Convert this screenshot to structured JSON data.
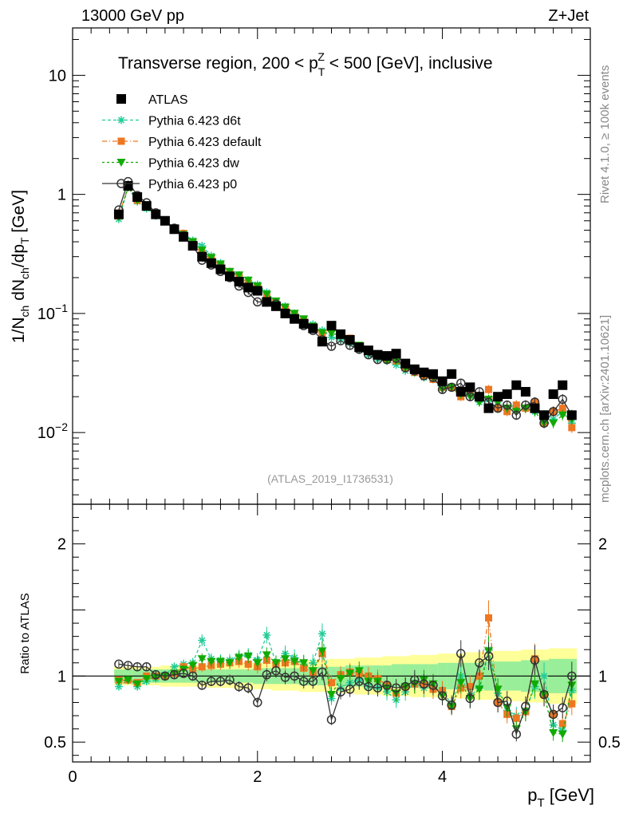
{
  "header": {
    "energy": "13000 GeV pp",
    "process": "Z+Jet"
  },
  "side_labels": {
    "rivet": "Rivet 4.1.0, ≥ 100k events",
    "mcplots": "mcplots.cern.ch [arXiv:2401.10621]"
  },
  "analysis_id": "(ATLAS_2019_I1736531)",
  "chart_data": [
    {
      "type": "scatter",
      "title_parts": [
        "Transverse region, 200 < p",
        "T",
        "Z",
        " < 500 [GeV], inclusive"
      ],
      "ylabel": "1/N_ch dN_ch/dp_T [GeV]",
      "xlabel": "p_T [GeV]",
      "xlim": [
        0,
        5.6
      ],
      "ylim": [
        0.0025,
        25
      ],
      "yscale": "log",
      "xticks": [
        0,
        2,
        4
      ],
      "yticks": [
        {
          "v": 10,
          "t": "10"
        },
        {
          "v": 1,
          "t": "1"
        },
        {
          "v": 0.1,
          "t": "10",
          "e": "−1"
        },
        {
          "v": 0.01,
          "t": "10",
          "e": "−2"
        }
      ],
      "x": [
        0.5,
        0.6,
        0.7,
        0.8,
        0.9,
        1.0,
        1.1,
        1.2,
        1.3,
        1.4,
        1.5,
        1.6,
        1.7,
        1.8,
        1.9,
        2.0,
        2.1,
        2.2,
        2.3,
        2.4,
        2.5,
        2.6,
        2.7,
        2.8,
        2.9,
        3.0,
        3.1,
        3.2,
        3.3,
        3.4,
        3.5,
        3.6,
        3.7,
        3.8,
        3.9,
        4.0,
        4.1,
        4.2,
        4.3,
        4.4,
        4.5,
        4.6,
        4.7,
        4.8,
        4.9,
        5.0,
        5.1,
        5.2,
        5.3,
        5.4
      ],
      "series": [
        {
          "name": "ATLAS",
          "color": "#000000",
          "marker": "square",
          "line": "none",
          "values": [
            0.68,
            1.18,
            0.95,
            0.8,
            0.68,
            0.6,
            0.51,
            0.44,
            0.37,
            0.3,
            0.265,
            0.235,
            0.205,
            0.185,
            0.165,
            0.155,
            0.125,
            0.115,
            0.1,
            0.09,
            0.082,
            0.075,
            0.058,
            0.079,
            0.067,
            0.06,
            0.052,
            0.049,
            0.045,
            0.044,
            0.046,
            0.038,
            0.034,
            0.032,
            0.031,
            0.027,
            0.031,
            0.022,
            0.024,
            0.02,
            0.016,
            0.02,
            0.021,
            0.025,
            0.022,
            0.016,
            0.014,
            0.021,
            0.025,
            0.014
          ]
        },
        {
          "name": "Pythia 6.423 d6t",
          "color": "#22cc99",
          "marker": "asterisk",
          "line": "4,3",
          "values": [
            0.62,
            1.14,
            0.87,
            0.76,
            0.66,
            0.6,
            0.52,
            0.47,
            0.41,
            0.37,
            0.305,
            0.265,
            0.225,
            0.21,
            0.19,
            0.175,
            0.15,
            0.125,
            0.115,
            0.1,
            0.088,
            0.081,
            0.072,
            0.063,
            0.06,
            0.056,
            0.05,
            0.045,
            0.041,
            0.04,
            0.037,
            0.033,
            0.032,
            0.029,
            0.028,
            0.025,
            0.024,
            0.022,
            0.021,
            0.018,
            0.019,
            0.017,
            0.016,
            0.017,
            0.016,
            0.015,
            0.014,
            0.013,
            0.015,
            0.012
          ]
        },
        {
          "name": "Pythia 6.423 default",
          "color": "#ee7722",
          "marker": "square-small",
          "line": "6,3,1,3",
          "values": [
            0.66,
            1.15,
            0.89,
            0.8,
            0.68,
            0.6,
            0.52,
            0.47,
            0.39,
            0.32,
            0.285,
            0.255,
            0.225,
            0.205,
            0.18,
            0.165,
            0.14,
            0.125,
            0.11,
            0.1,
            0.087,
            0.077,
            0.068,
            0.075,
            0.068,
            0.062,
            0.053,
            0.049,
            0.044,
            0.041,
            0.04,
            0.035,
            0.032,
            0.03,
            0.028,
            0.024,
            0.024,
            0.02,
            0.022,
            0.02,
            0.023,
            0.016,
            0.015,
            0.017,
            0.016,
            0.018,
            0.012,
            0.015,
            0.016,
            0.011
          ]
        },
        {
          "name": "Pythia 6.423 dw",
          "color": "#11aa00",
          "marker": "triangle-down",
          "line": "3,3",
          "values": [
            0.65,
            1.15,
            0.89,
            0.78,
            0.67,
            0.6,
            0.52,
            0.46,
            0.4,
            0.34,
            0.295,
            0.26,
            0.225,
            0.21,
            0.19,
            0.17,
            0.145,
            0.127,
            0.113,
            0.1,
            0.09,
            0.078,
            0.069,
            0.068,
            0.066,
            0.061,
            0.054,
            0.047,
            0.043,
            0.04,
            0.04,
            0.035,
            0.032,
            0.031,
            0.029,
            0.023,
            0.024,
            0.021,
            0.02,
            0.018,
            0.019,
            0.018,
            0.016,
            0.015,
            0.016,
            0.015,
            0.012,
            0.012,
            0.014,
            0.013
          ]
        },
        {
          "name": "Pythia 6.423 p0",
          "color": "#333333",
          "marker": "circle-open",
          "line": "solid",
          "values": [
            0.74,
            1.28,
            0.98,
            0.85,
            0.7,
            0.6,
            0.52,
            0.45,
            0.37,
            0.28,
            0.255,
            0.225,
            0.2,
            0.17,
            0.15,
            0.125,
            0.125,
            0.12,
            0.1,
            0.09,
            0.079,
            0.072,
            0.06,
            0.053,
            0.059,
            0.054,
            0.05,
            0.045,
            0.041,
            0.041,
            0.042,
            0.035,
            0.033,
            0.03,
            0.029,
            0.023,
            0.024,
            0.026,
            0.02,
            0.022,
            0.018,
            0.016,
            0.017,
            0.014,
            0.017,
            0.018,
            0.012,
            0.015,
            0.019,
            0.014
          ]
        }
      ]
    },
    {
      "type": "scatter",
      "ylabel": "Ratio to ATLAS",
      "xlabel": "p_T [GeV]",
      "xlim": [
        0,
        5.6
      ],
      "ylim": [
        0.35,
        2.3
      ],
      "yticks": [
        {
          "v": 0.5,
          "t": "0.5"
        },
        {
          "v": 1,
          "t": "1"
        },
        {
          "v": 2,
          "t": "2"
        }
      ],
      "xticks": [
        0,
        2,
        4
      ],
      "reference_line": 1,
      "band_inner_halfwidth": [
        0.05,
        0.05,
        0.05,
        0.05,
        0.05,
        0.05,
        0.05,
        0.05,
        0.05,
        0.05,
        0.05,
        0.05,
        0.05,
        0.05,
        0.05,
        0.06,
        0.06,
        0.06,
        0.06,
        0.06,
        0.07,
        0.07,
        0.07,
        0.07,
        0.07,
        0.08,
        0.08,
        0.08,
        0.08,
        0.08,
        0.09,
        0.09,
        0.09,
        0.09,
        0.09,
        0.1,
        0.1,
        0.1,
        0.1,
        0.1,
        0.11,
        0.11,
        0.11,
        0.11,
        0.12,
        0.12,
        0.12,
        0.13,
        0.13,
        0.13
      ],
      "band_outer_halfwidth": [
        0.07,
        0.07,
        0.07,
        0.07,
        0.07,
        0.08,
        0.08,
        0.08,
        0.08,
        0.08,
        0.09,
        0.09,
        0.09,
        0.1,
        0.1,
        0.1,
        0.1,
        0.11,
        0.11,
        0.11,
        0.12,
        0.12,
        0.12,
        0.13,
        0.13,
        0.13,
        0.14,
        0.14,
        0.14,
        0.15,
        0.15,
        0.15,
        0.16,
        0.16,
        0.16,
        0.17,
        0.17,
        0.17,
        0.18,
        0.18,
        0.18,
        0.19,
        0.19,
        0.19,
        0.2,
        0.2,
        0.2,
        0.21,
        0.21,
        0.21
      ],
      "series": [
        {
          "name": "Pythia 6.423 d6t",
          "color": "#22cc99",
          "marker": "asterisk",
          "line": "4,3",
          "values": [
            0.92,
            0.97,
            0.92,
            0.96,
            0.98,
            1.01,
            1.07,
            1.09,
            1.1,
            1.27,
            1.13,
            1.12,
            1.12,
            1.15,
            1.16,
            1.12,
            1.31,
            1.1,
            1.17,
            1.14,
            1.09,
            1.1,
            1.32,
            0.83,
            0.91,
            0.95,
            0.97,
            0.92,
            0.91,
            0.88,
            0.82,
            0.88,
            0.95,
            0.91,
            0.91,
            0.88,
            0.79,
            1.0,
            0.85,
            0.91,
            1.2,
            0.87,
            0.74,
            0.7,
            0.74,
            0.92,
            1.0,
            0.63,
            0.59,
            0.89
          ]
        },
        {
          "name": "Pythia 6.423 default",
          "color": "#ee7722",
          "marker": "square-small",
          "line": "6,3,1,3",
          "values": [
            0.97,
            0.97,
            0.95,
            1.0,
            1.0,
            1.0,
            1.02,
            1.07,
            1.05,
            1.07,
            1.08,
            1.09,
            1.1,
            1.11,
            1.09,
            1.07,
            1.12,
            1.09,
            1.1,
            1.11,
            1.06,
            1.03,
            1.17,
            0.95,
            1.01,
            1.03,
            1.02,
            1.0,
            0.98,
            0.93,
            0.87,
            0.92,
            0.94,
            0.94,
            0.9,
            0.89,
            0.77,
            0.91,
            0.92,
            1.0,
            1.44,
            0.8,
            0.71,
            0.68,
            0.73,
            1.13,
            0.86,
            0.71,
            0.64,
            0.79
          ]
        },
        {
          "name": "Pythia 6.423 dw",
          "color": "#11aa00",
          "marker": "triangle-down",
          "line": "3,3",
          "values": [
            0.96,
            0.97,
            0.94,
            0.98,
            0.99,
            1.0,
            1.02,
            1.05,
            1.08,
            1.13,
            1.11,
            1.11,
            1.1,
            1.14,
            1.15,
            1.1,
            1.16,
            1.1,
            1.13,
            1.11,
            1.1,
            1.04,
            1.19,
            0.86,
            0.98,
            1.02,
            1.04,
            0.96,
            0.96,
            0.91,
            0.87,
            0.92,
            0.94,
            0.97,
            0.94,
            0.85,
            0.77,
            0.95,
            0.83,
            0.9,
            1.19,
            0.9,
            0.76,
            0.6,
            0.73,
            0.94,
            0.86,
            0.57,
            0.56,
            0.93
          ]
        },
        {
          "name": "Pythia 6.423 p0",
          "color": "#333333",
          "marker": "circle-open",
          "line": "solid",
          "values": [
            1.09,
            1.08,
            1.07,
            1.07,
            1.01,
            1.0,
            1.01,
            1.02,
            1.0,
            0.93,
            0.96,
            0.96,
            0.97,
            0.92,
            0.91,
            0.8,
            1.01,
            1.04,
            0.99,
            1.0,
            0.96,
            0.96,
            1.03,
            0.67,
            0.88,
            0.9,
            0.96,
            0.92,
            0.91,
            0.93,
            0.91,
            0.92,
            0.97,
            0.94,
            0.93,
            0.85,
            0.78,
            1.17,
            0.83,
            1.1,
            1.15,
            0.8,
            0.81,
            0.56,
            0.77,
            1.12,
            0.86,
            0.71,
            0.76,
            1.0
          ]
        }
      ]
    }
  ]
}
